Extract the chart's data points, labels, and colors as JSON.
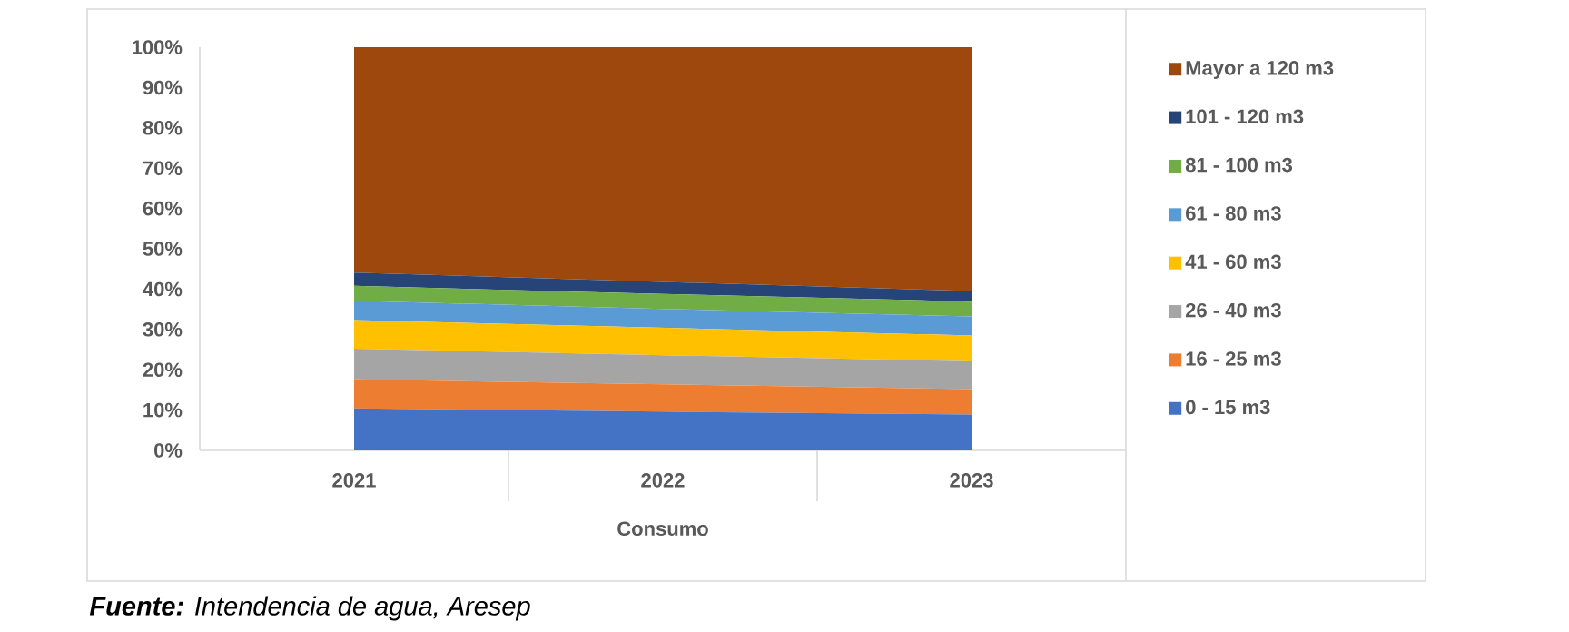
{
  "chart_data": {
    "type": "area",
    "stacked": true,
    "xlabel": "Consumo",
    "legend": "right",
    "categories": [
      "2021",
      "2022",
      "2023"
    ],
    "ylim": [
      0,
      100
    ],
    "yticks": [
      {
        "value": 0,
        "label": "0%"
      },
      {
        "value": 10,
        "label": "10%"
      },
      {
        "value": 20,
        "label": "20%"
      },
      {
        "value": 30,
        "label": "30%"
      },
      {
        "value": 40,
        "label": "40%"
      },
      {
        "value": 50,
        "label": "50%"
      },
      {
        "value": 60,
        "label": "60%"
      },
      {
        "value": 70,
        "label": "70%"
      },
      {
        "value": 80,
        "label": "80%"
      },
      {
        "value": 90,
        "label": "90%"
      },
      {
        "value": 100,
        "label": "100%"
      }
    ],
    "series": [
      {
        "name": "0 - 15 m3",
        "color": "#4472c4",
        "values": [
          10.4,
          9.6,
          8.9
        ]
      },
      {
        "name": "16 - 25 m3",
        "color": "#ed7d31",
        "values": [
          7.2,
          6.8,
          6.3
        ]
      },
      {
        "name": "26 - 40 m3",
        "color": "#a5a5a5",
        "values": [
          7.6,
          7.2,
          6.9
        ]
      },
      {
        "name": "41 - 60 m3",
        "color": "#ffc000",
        "values": [
          7.1,
          6.8,
          6.4
        ]
      },
      {
        "name": "61 - 80 m3",
        "color": "#5b9bd5",
        "values": [
          4.8,
          4.7,
          4.7
        ]
      },
      {
        "name": "81 - 100 m3",
        "color": "#70ad47",
        "values": [
          3.7,
          3.7,
          3.7
        ]
      },
      {
        "name": "101 - 120 m3",
        "color": "#264478",
        "values": [
          3.3,
          3.0,
          2.6
        ]
      },
      {
        "name": "Mayor a 120 m3",
        "color": "#9e480e",
        "values": [
          55.9,
          58.2,
          60.5
        ]
      }
    ],
    "annotations": [
      "**Fuente:** Intendencia de agua, Aresep"
    ]
  }
}
